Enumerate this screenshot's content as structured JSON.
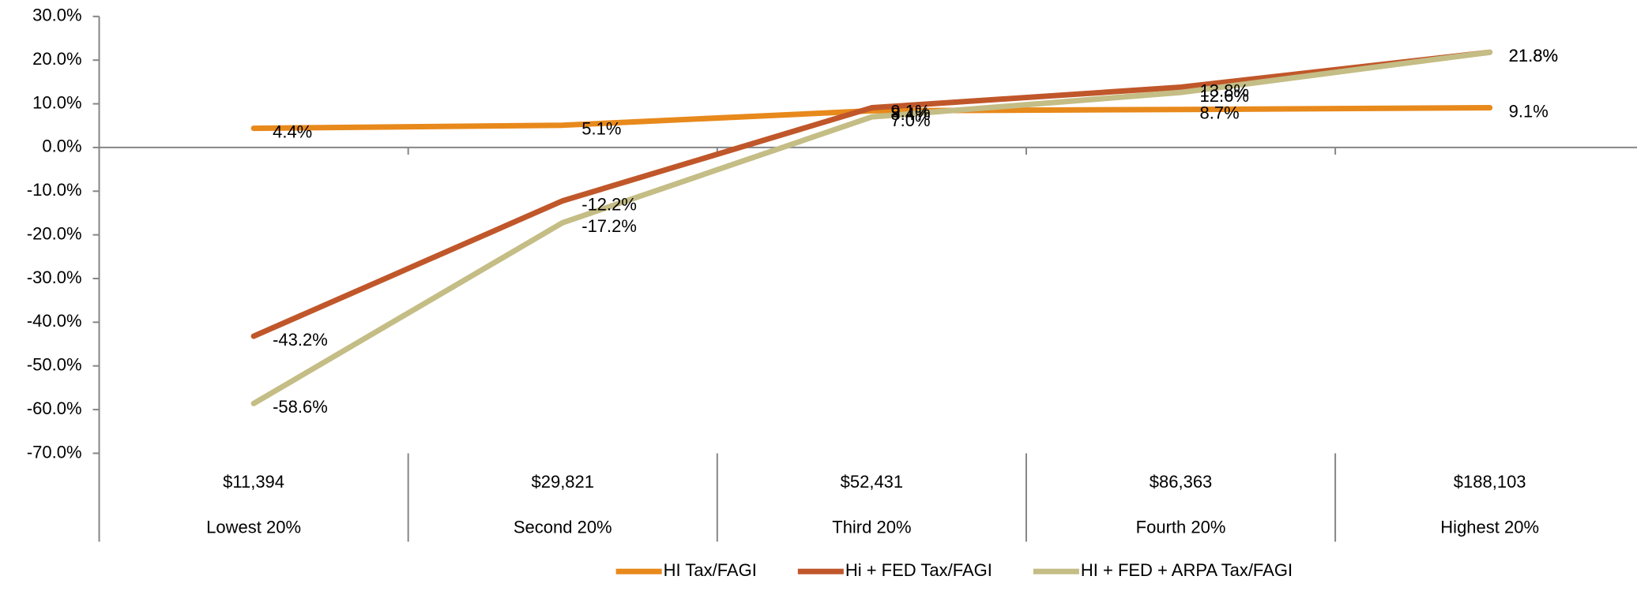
{
  "chart_data": {
    "type": "line",
    "categories": [
      "$11,394",
      "$29,821",
      "$52,431",
      "$86,363",
      "$188,103"
    ],
    "category_groups": [
      "Lowest 20%",
      "Second 20%",
      "Third 20%",
      "Fourth 20%",
      "Highest 20%"
    ],
    "series": [
      {
        "name": "HI Tax/FAGI",
        "color": "#e8891c",
        "values": [
          4.4,
          5.1,
          8.4,
          8.7,
          9.1
        ],
        "value_labels": [
          "4.4%",
          "5.1%",
          "8.4%",
          "8.7%",
          "9.1%"
        ]
      },
      {
        "name": "Hi + FED Tax/FAGI",
        "color": "#c0572a",
        "values": [
          -43.2,
          -12.2,
          9.1,
          13.8,
          21.8
        ],
        "value_labels": [
          "-43.2%",
          "-12.2%",
          "9.1%",
          "13.8%",
          "21.8%"
        ]
      },
      {
        "name": "HI + FED + ARPA Tax/FAGI",
        "color": "#c4bd85",
        "values": [
          -58.6,
          -17.2,
          7.0,
          12.6,
          21.8
        ],
        "value_labels": [
          "-58.6%",
          "-17.2%",
          "7.0%",
          "12.6%",
          "21.8%"
        ]
      }
    ],
    "ylim": [
      -70,
      30
    ],
    "yticks": [
      {
        "value": 30,
        "label": "30.0%"
      },
      {
        "value": 20,
        "label": "20.0%"
      },
      {
        "value": 10,
        "label": "10.0%"
      },
      {
        "value": 0,
        "label": "0.0%"
      },
      {
        "value": -10,
        "label": "-10.0%"
      },
      {
        "value": -20,
        "label": "-20.0%"
      },
      {
        "value": -30,
        "label": "-30.0%"
      },
      {
        "value": -40,
        "label": "-40.0%"
      },
      {
        "value": -50,
        "label": "-50.0%"
      },
      {
        "value": -60,
        "label": "-60.0%"
      },
      {
        "value": -70,
        "label": "-70.0%"
      }
    ],
    "grid": false,
    "legend": "bottom"
  }
}
